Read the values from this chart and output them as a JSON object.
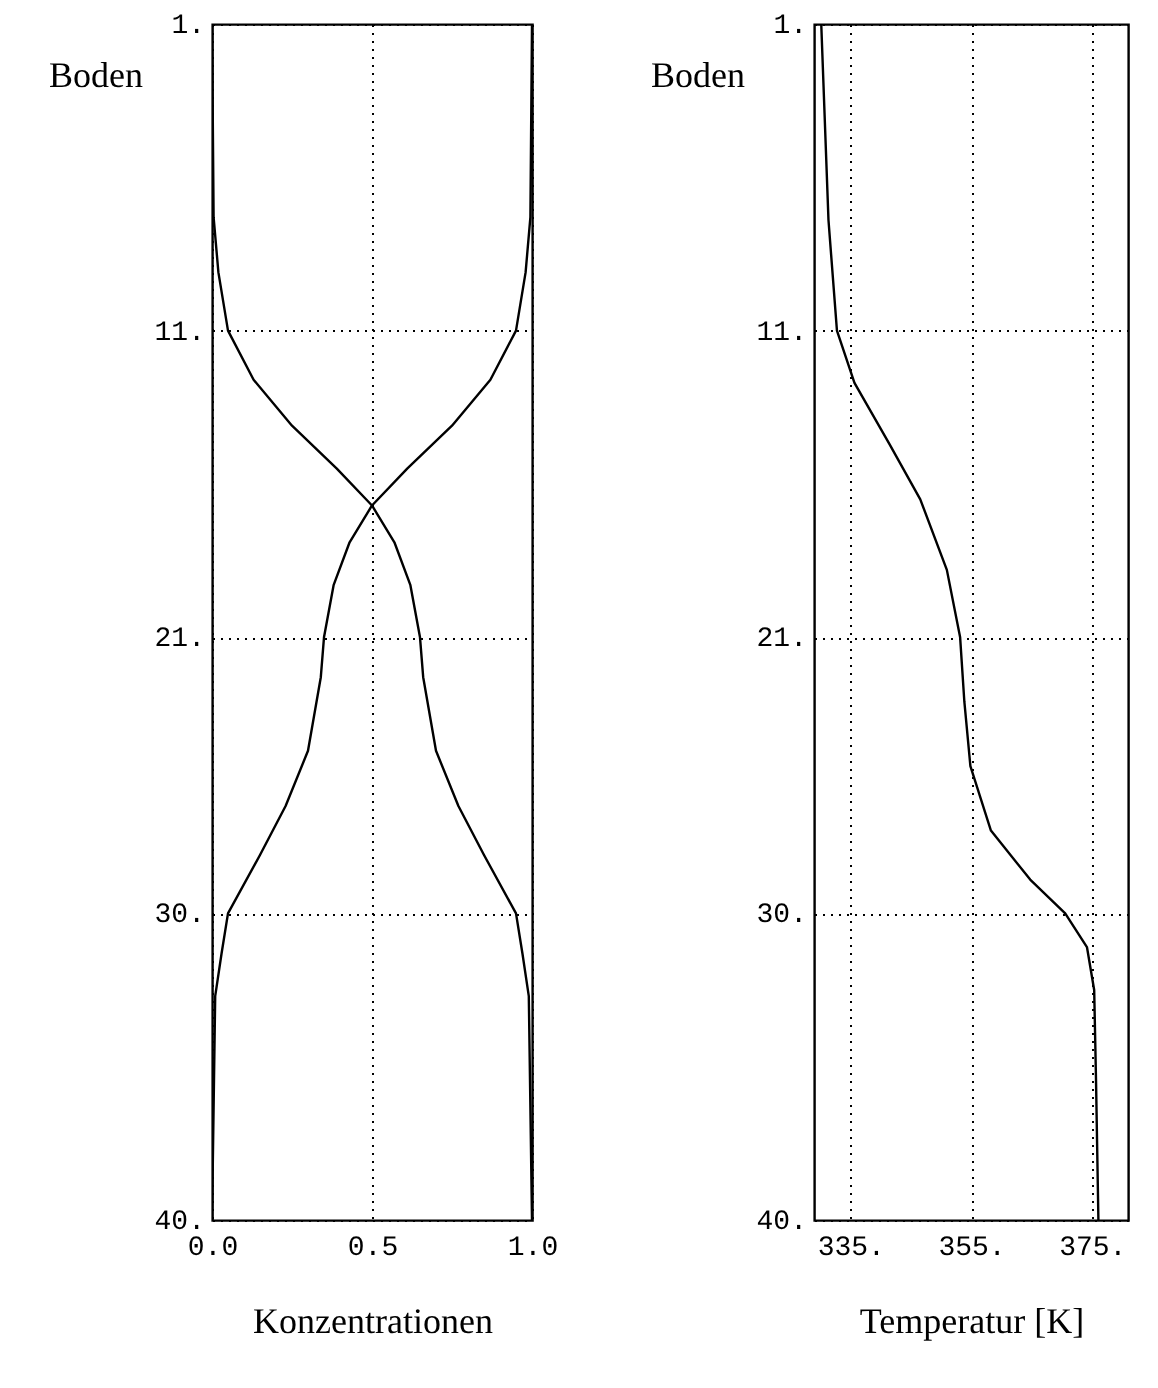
{
  "chart_data": [
    {
      "type": "line",
      "orientation": "horizontal",
      "ylabel": "Boden",
      "xlabel": "Konzentrationen",
      "ylim": [
        40,
        1
      ],
      "yticks": [
        {
          "value": 1,
          "label": "1."
        },
        {
          "value": 11,
          "label": "11."
        },
        {
          "value": 21,
          "label": "21."
        },
        {
          "value": 30,
          "label": "30."
        },
        {
          "value": 40,
          "label": "40."
        }
      ],
      "xlim": [
        0,
        1
      ],
      "xticks": [
        {
          "value": 0,
          "label": "0.0"
        },
        {
          "value": 0.5,
          "label": "0.5"
        },
        {
          "value": 1,
          "label": "1.0"
        }
      ],
      "grid": true,
      "series": [
        {
          "color": "#000000",
          "x": [
            1,
            7.3,
            9.1,
            11,
            12.6,
            14.1,
            15.5,
            16.7,
            17.9,
            19.3,
            21,
            22.3,
            24.7,
            26.5,
            28.1,
            30,
            31.3,
            32.7,
            40
          ],
          "values": [
            0,
            0.005,
            0.02,
            0.05,
            0.13,
            0.25,
            0.39,
            0.5,
            0.57,
            0.62,
            0.65,
            0.66,
            0.7,
            0.77,
            0.85,
            0.95,
            0.97,
            0.99,
            1
          ]
        },
        {
          "color": "#000000",
          "x": [
            1,
            7.3,
            9.1,
            11,
            12.6,
            14.1,
            15.5,
            16.7,
            17.9,
            19.3,
            21,
            22.3,
            24.7,
            26.5,
            28.1,
            30,
            31.3,
            32.7,
            40
          ],
          "values": [
            1,
            0.995,
            0.98,
            0.95,
            0.87,
            0.75,
            0.61,
            0.5,
            0.43,
            0.38,
            0.35,
            0.34,
            0.3,
            0.23,
            0.15,
            0.05,
            0.03,
            0.01,
            0
          ]
        }
      ]
    },
    {
      "type": "line",
      "orientation": "horizontal",
      "ylabel": "Boden",
      "xlabel": "Temperatur [K]",
      "ylim": [
        40,
        1
      ],
      "yticks": [
        {
          "value": 1,
          "label": "1."
        },
        {
          "value": 11,
          "label": "11."
        },
        {
          "value": 21,
          "label": "21."
        },
        {
          "value": 30,
          "label": "30."
        },
        {
          "value": 40,
          "label": "40."
        }
      ],
      "xlim": [
        329,
        381
      ],
      "xticks": [
        {
          "value": 335,
          "label": "335."
        },
        {
          "value": 355,
          "label": "355."
        },
        {
          "value": 375,
          "label": "375."
        }
      ],
      "grid": true,
      "series": [
        {
          "color": "#000000",
          "x": [
            1,
            7.4,
            11,
            12.7,
            14.7,
            16.5,
            18.8,
            21,
            23.1,
            25.2,
            27.3,
            28.9,
            30,
            31.1,
            32.5,
            35.4,
            40
          ],
          "values": [
            330.2,
            331.4,
            332.8,
            335.7,
            341.5,
            346.6,
            351,
            353.2,
            353.9,
            354.9,
            358.3,
            364.8,
            370.6,
            374.2,
            375.4,
            375.7,
            376.1
          ]
        }
      ]
    }
  ]
}
